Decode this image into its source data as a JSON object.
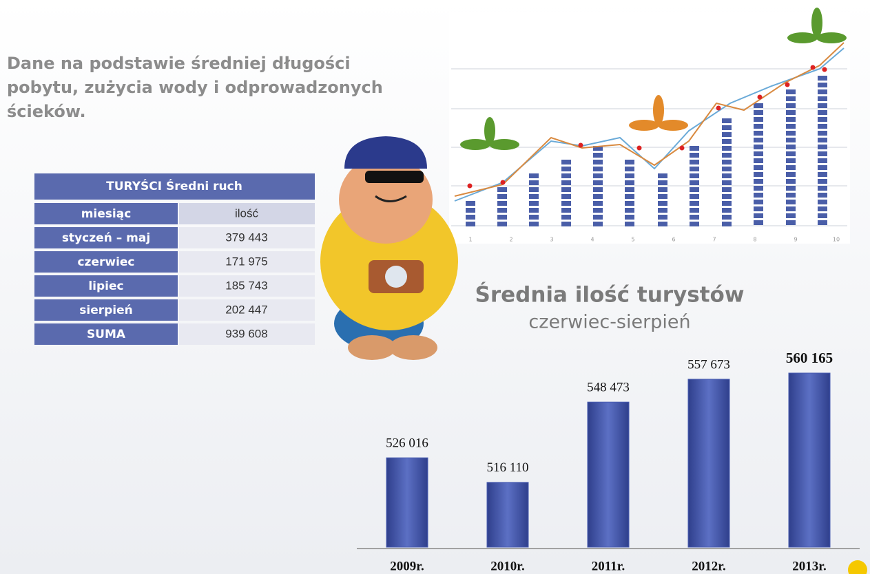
{
  "heading": {
    "lines": [
      "Dane na podstawie średniej długości",
      "pobytu, zużycia wody i odprowadzonych",
      "ścieków."
    ]
  },
  "table": {
    "title": "TURYŚCI Średni ruch",
    "rows": [
      [
        "miesiąc",
        "ilość"
      ],
      [
        "styczeń – maj",
        "379 443"
      ],
      [
        "czerwiec",
        "171 975"
      ],
      [
        "lipiec",
        "185 743"
      ],
      [
        "sierpień",
        "202 447"
      ],
      [
        "SUMA",
        "939 608"
      ]
    ]
  },
  "illustration": {
    "labels": [
      "1",
      "2",
      "3",
      "4",
      "5",
      "6",
      "7",
      "8",
      "9",
      "10"
    ]
  },
  "chart_data": {
    "type": "bar",
    "title": "Średnia ilość turystów",
    "subtitle": "czerwiec-sierpień",
    "categories": [
      "2009r.",
      "2010r.",
      "2011r.",
      "2012r.",
      "2013r."
    ],
    "values": [
      526016,
      516110,
      548473,
      557673,
      560165
    ],
    "value_labels": [
      "526 016",
      "516 110",
      "548 473",
      "557 673",
      "560 165"
    ],
    "color": "#4a5eb2",
    "ylim": [
      490000,
      566000
    ]
  }
}
